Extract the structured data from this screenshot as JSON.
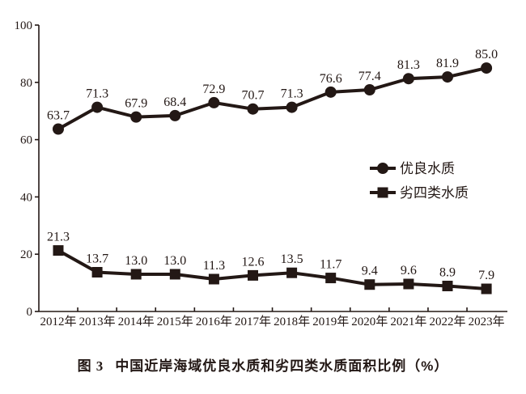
{
  "chart_data": {
    "type": "line",
    "title": "中国近岸海域优良水质和劣四类水质面积比例（%）",
    "figure_label": "图 3",
    "categories": [
      "2012年",
      "2013年",
      "2014年",
      "2015年",
      "2016年",
      "2017年",
      "2018年",
      "2019年",
      "2020年",
      "2021年",
      "2022年",
      "2023年"
    ],
    "series": [
      {
        "name": "优良水质",
        "marker": "circle",
        "values": [
          63.7,
          71.3,
          67.9,
          68.4,
          72.9,
          70.7,
          71.3,
          76.6,
          77.4,
          81.3,
          81.9,
          85.0
        ]
      },
      {
        "name": "劣四类水质",
        "marker": "square",
        "values": [
          21.3,
          13.7,
          13.0,
          13.0,
          11.3,
          12.6,
          13.5,
          11.7,
          9.4,
          9.6,
          8.9,
          7.9
        ]
      }
    ],
    "xlabel": "",
    "ylabel": "",
    "ylim": [
      0,
      100
    ],
    "yticks": [
      0,
      20,
      40,
      60,
      80,
      100
    ],
    "grid": false,
    "legend_position": "middle-right",
    "data_labels": true,
    "ink_color": "#231815",
    "background_color": "#ffffff"
  },
  "caption": {
    "figure_label": "图 3",
    "title": "中国近岸海域优良水质和劣四类水质面积比例（%）"
  }
}
